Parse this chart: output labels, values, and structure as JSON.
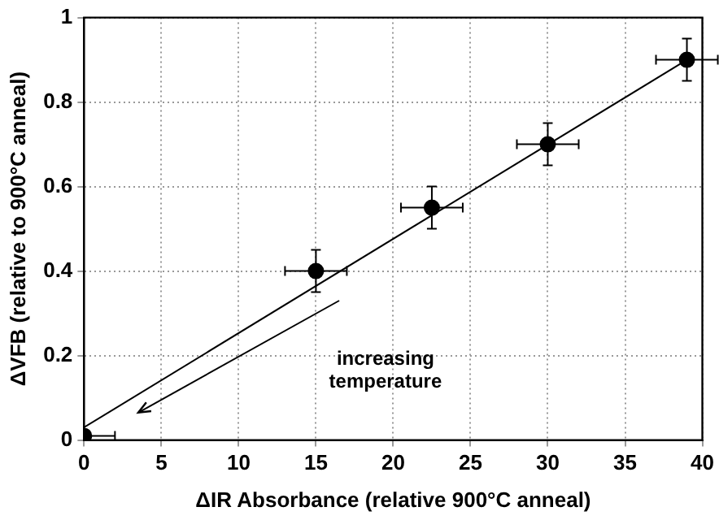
{
  "chart_data": {
    "type": "scatter",
    "xlabel": "ΔIR Absorbance (relative 900°C anneal)",
    "ylabel": "ΔVFB (relative to 900°C anneal)",
    "xlim": [
      0,
      40
    ],
    "xticks": [
      0,
      5,
      10,
      15,
      20,
      25,
      30,
      35,
      40
    ],
    "ylim": [
      0,
      1
    ],
    "yticks": [
      0,
      0.2,
      0.4,
      0.6,
      0.8,
      1
    ],
    "grid": true,
    "marker": "circle",
    "annotations": [
      "increasing temperature"
    ],
    "series": [
      {
        "color": "#000000",
        "x": [
          0,
          15,
          22.5,
          30,
          39
        ],
        "values": [
          0.01,
          0.4,
          0.55,
          0.7,
          0.9
        ],
        "errors": [
          null,
          0.05,
          0.05,
          0.05,
          0.05
        ],
        "xerrors": [
          [
            0,
            2
          ],
          2,
          2,
          2,
          2
        ]
      },
      {
        "type": "line",
        "marker": "none",
        "color": "#000000",
        "x": [
          0,
          39
        ],
        "values": [
          0.03,
          0.9
        ]
      }
    ]
  }
}
